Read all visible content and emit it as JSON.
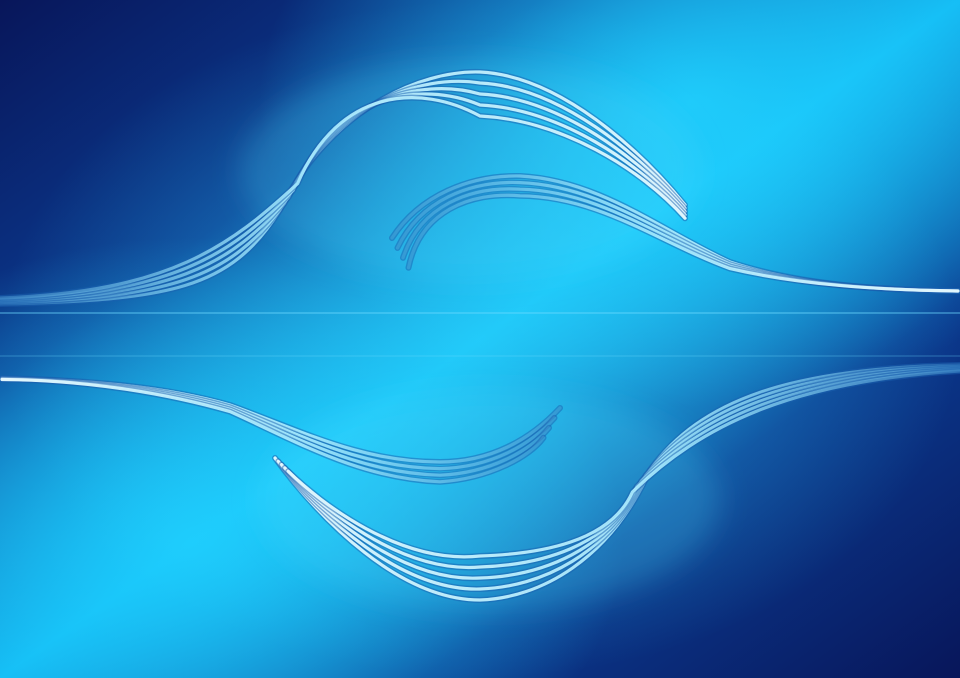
{
  "image": {
    "subject": "abstract-blue-wave-reflection",
    "palette": {
      "navy": "#08165a",
      "deep_blue": "#0b3a8f",
      "mid_blue": "#0f7fd6",
      "cyan": "#12b8f2",
      "bright_cyan": "#1fd0ff",
      "wave_light": "#e9fbff",
      "wave_tint": "#8fe4ff",
      "wave_shadow": "#1a5fb0"
    },
    "wave_group_upper": {
      "line_count": 5
    },
    "wave_group_upper_inner": {
      "line_count": 4
    },
    "wave_group_lower": {
      "line_count": 5
    },
    "wave_group_lower_inner": {
      "line_count": 4
    }
  }
}
